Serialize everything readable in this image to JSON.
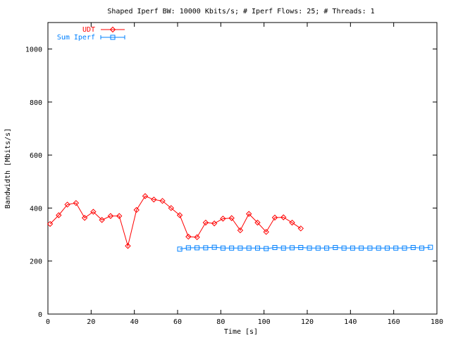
{
  "chart_data": {
    "type": "line",
    "title": "Shaped Iperf BW: 10000 Kbits/s; # Iperf Flows: 25; # Threads: 1",
    "xlabel": "Time [s]",
    "ylabel": "Bandwidth [Mbits/s]",
    "xlim": [
      0,
      180
    ],
    "ylim": [
      0,
      1100
    ],
    "xticks": [
      0,
      20,
      40,
      60,
      80,
      100,
      120,
      140,
      160,
      180
    ],
    "yticks": [
      0,
      200,
      400,
      600,
      800,
      1000
    ],
    "grid": false,
    "legend_position": "top-left",
    "series": [
      {
        "name": "UDT",
        "color": "#ff0000",
        "marker": "diamond",
        "x": [
          1,
          5,
          9,
          13,
          17,
          21,
          25,
          29,
          33,
          37,
          41,
          45,
          49,
          53,
          57,
          61,
          65,
          69,
          73,
          77,
          81,
          85,
          89,
          93,
          97,
          101,
          105,
          109,
          113,
          117
        ],
        "y": [
          340,
          373,
          413,
          419,
          363,
          386,
          355,
          370,
          370,
          257,
          393,
          445,
          432,
          427,
          400,
          373,
          292,
          290,
          345,
          342,
          360,
          362,
          316,
          378,
          345,
          310,
          364,
          365,
          345,
          323
        ]
      },
      {
        "name": "Sum Iperf",
        "color": "#0080ff",
        "marker": "square",
        "x": [
          61,
          65,
          69,
          73,
          77,
          81,
          85,
          89,
          93,
          97,
          101,
          105,
          109,
          113,
          117,
          121,
          125,
          129,
          133,
          137,
          141,
          145,
          149,
          153,
          157,
          161,
          165,
          169,
          173,
          177
        ],
        "y": [
          245,
          250,
          250,
          250,
          252,
          249,
          249,
          249,
          249,
          249,
          247,
          251,
          249,
          250,
          251,
          249,
          249,
          249,
          251,
          249,
          249,
          249,
          249,
          249,
          249,
          249,
          249,
          251,
          249,
          252
        ]
      }
    ]
  }
}
